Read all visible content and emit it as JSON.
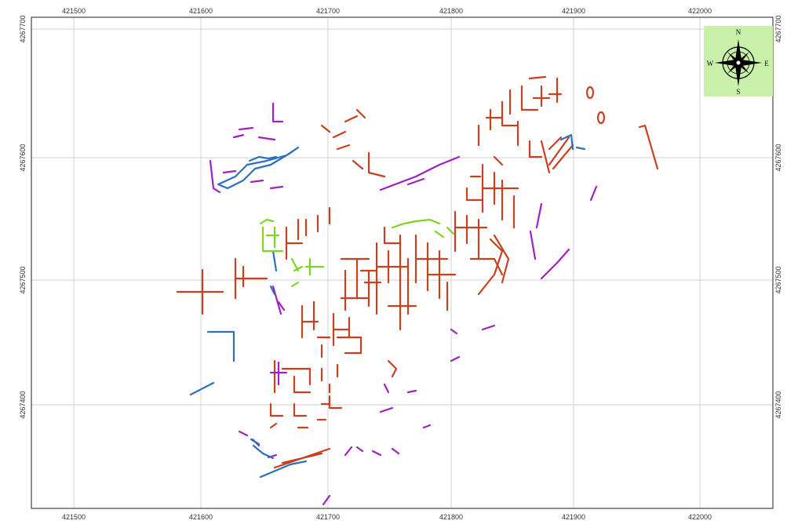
{
  "map": {
    "frame": {
      "x_range": [
        421450,
        422070
      ],
      "y_range": [
        4267300,
        4267700
      ]
    },
    "x_ticks": [
      {
        "value": 421500,
        "label": "421500"
      },
      {
        "value": 421600,
        "label": "421600"
      },
      {
        "value": 421700,
        "label": "421700"
      },
      {
        "value": 421800,
        "label": "421800"
      },
      {
        "value": 421900,
        "label": "421900"
      },
      {
        "value": 422000,
        "label": "422000"
      }
    ],
    "y_ticks": [
      {
        "value": 4267700,
        "label": "4267700"
      },
      {
        "value": 4267600,
        "label": "4267600"
      },
      {
        "value": 4267500,
        "label": "4267500"
      },
      {
        "value": 4267400,
        "label": "4267400"
      }
    ],
    "north_arrow": {
      "icon": "compass-rose-icon",
      "n": "N",
      "s": "S",
      "e": "E",
      "w": "W",
      "background": "#c8f0a8"
    },
    "feature_colors": {
      "wall": "#c8401e",
      "violet": "#a020c0",
      "blue": "#2a6fc0",
      "green": "#7ed321",
      "grid": "#d0d0d0",
      "frame": "#222222"
    }
  }
}
